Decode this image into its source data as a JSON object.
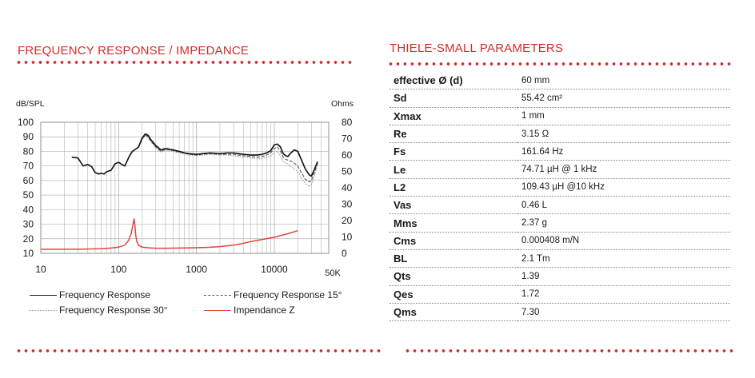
{
  "left_panel": {
    "title": "FREQUENCY RESPONSE / IMPEDANCE"
  },
  "right_panel": {
    "title": "THIELE-SMALL PARAMETERS",
    "parameters": [
      {
        "name": "effective Ø (d)",
        "value": "60 mm"
      },
      {
        "name": "Sd",
        "value": "55.42 cm²"
      },
      {
        "name": "Xmax",
        "value": "1 mm"
      },
      {
        "name": "Re",
        "value": "3.15 Ω"
      },
      {
        "name": "Fs",
        "value": "161.64 Hz"
      },
      {
        "name": "Le",
        "value": "74.71 µH @ 1 kHz"
      },
      {
        "name": "L2",
        "value": "109.43 µH @10 kHz"
      },
      {
        "name": "Vas",
        "value": "0.46 L"
      },
      {
        "name": "Mms",
        "value": "2.37 g"
      },
      {
        "name": "Cms",
        "value": "0.000408 m/N"
      },
      {
        "name": "BL",
        "value": "2.1 Tm"
      },
      {
        "name": "Qts",
        "value": "1.39"
      },
      {
        "name": "Qes",
        "value": "1.72"
      },
      {
        "name": "Qms",
        "value": "7.30"
      }
    ]
  },
  "colors": {
    "accent": "#d42a2a",
    "frequency_response": "#1a1a1a",
    "frequency_response_15": "#555555",
    "frequency_response_30": "#9a9a9a",
    "impedance": "#e8413c",
    "grid": "#b5b5b5"
  },
  "chart_data": {
    "type": "line",
    "x_scale": "log",
    "xlim": [
      10,
      50000
    ],
    "x_ticks": [
      {
        "value": 10,
        "label": "10"
      },
      {
        "value": 100,
        "label": "100"
      },
      {
        "value": 1000,
        "label": "1000"
      },
      {
        "value": 10000,
        "label": "10000"
      },
      {
        "value": 50000,
        "label": "50K"
      }
    ],
    "left_axis": {
      "label": "dB/SPL",
      "lim": [
        10,
        100
      ],
      "ticks": [
        10,
        20,
        30,
        40,
        50,
        60,
        70,
        80,
        90,
        100
      ]
    },
    "right_axis": {
      "label": "Ohms",
      "lim": [
        0,
        80
      ],
      "ticks": [
        0,
        10,
        20,
        30,
        40,
        50,
        60,
        70,
        80
      ]
    },
    "grid": true,
    "legend": [
      "Frequency Response",
      "Frequency Response 15°",
      "Frequency Response 30°",
      "Impendance Z"
    ],
    "series": [
      {
        "name": "Frequency Response",
        "axis": "left",
        "style": "solid",
        "x": [
          25,
          30,
          35,
          40,
          45,
          50,
          55,
          60,
          65,
          70,
          80,
          90,
          100,
          110,
          120,
          130,
          140,
          150,
          160,
          170,
          180,
          200,
          220,
          240,
          260,
          280,
          300,
          350,
          400,
          450,
          500,
          600,
          700,
          800,
          1000,
          1200,
          1500,
          2000,
          2500,
          3000,
          4000,
          5000,
          6000,
          7000,
          8000,
          9000,
          10000,
          11000,
          12000,
          13000,
          14000,
          15000,
          16000,
          18000,
          20000,
          22000,
          25000,
          28000,
          30000,
          33000,
          36000
        ],
        "y": [
          76,
          75.5,
          70,
          71,
          69.5,
          65.5,
          64.5,
          65,
          64.5,
          66,
          67,
          71.5,
          72.5,
          71,
          70,
          74,
          77.5,
          80,
          81,
          82,
          83,
          89,
          92,
          91,
          88,
          86,
          84,
          81,
          82,
          81.5,
          81,
          80,
          79,
          78.5,
          78,
          78.5,
          79,
          78.5,
          79,
          79,
          78,
          77.5,
          77.5,
          78,
          79,
          80.5,
          84.5,
          85,
          83,
          78.5,
          77,
          76.5,
          78.5,
          81,
          80,
          75,
          68,
          64,
          63,
          68,
          73
        ]
      },
      {
        "name": "Frequency Response 15°",
        "axis": "left",
        "style": "dashed",
        "x": [
          180,
          200,
          220,
          240,
          260,
          280,
          300,
          350,
          400,
          450,
          500,
          600,
          700,
          800,
          1000,
          1200,
          1500,
          2000,
          2500,
          3000,
          4000,
          5000,
          6000,
          7000,
          8000,
          9000,
          10000,
          11000,
          12000,
          13000,
          14000,
          15000,
          16000,
          18000,
          20000,
          22000,
          25000,
          28000,
          30000,
          33000,
          36000
        ],
        "y": [
          83,
          88.5,
          91.5,
          90,
          87,
          85,
          83,
          80,
          81.5,
          81,
          80.5,
          79.5,
          79,
          78,
          77.5,
          78,
          78.5,
          78,
          78,
          78,
          77,
          76.5,
          76,
          76.5,
          77.5,
          79,
          82,
          83,
          80,
          76,
          74.5,
          74,
          73.5,
          72,
          70,
          66,
          61,
          59,
          60,
          66,
          72
        ]
      },
      {
        "name": "Frequency Response 30°",
        "axis": "left",
        "style": "dotted",
        "x": [
          180,
          200,
          220,
          240,
          260,
          280,
          300,
          350,
          400,
          450,
          500,
          600,
          700,
          800,
          1000,
          1200,
          1500,
          2000,
          2500,
          3000,
          4000,
          5000,
          6000,
          7000,
          8000,
          9000,
          10000,
          11000,
          12000,
          13000,
          14000,
          15000,
          16000,
          18000,
          20000,
          22000,
          25000,
          28000,
          30000,
          33000,
          36000
        ],
        "y": [
          82.5,
          88,
          91,
          89.5,
          86.5,
          84.5,
          82.5,
          79.5,
          81,
          80.5,
          80,
          79,
          78.5,
          77.5,
          77,
          77.5,
          78,
          77.5,
          77.5,
          77,
          76,
          75.5,
          75,
          75,
          76,
          77,
          79,
          80,
          77,
          73,
          72,
          71.5,
          70,
          68,
          66,
          62,
          58,
          56,
          57,
          64,
          71
        ]
      },
      {
        "name": "Impendance Z",
        "axis": "right",
        "style": "solid",
        "x": [
          10,
          30,
          60,
          80,
          100,
          120,
          135,
          145,
          152,
          158,
          162,
          166,
          172,
          180,
          200,
          250,
          300,
          400,
          600,
          1000,
          1500,
          2000,
          3000,
          4000,
          5000,
          7000,
          10000,
          15000,
          20000
        ],
        "y": [
          2.5,
          2.5,
          2.8,
          3.2,
          3.8,
          5,
          8,
          12,
          17,
          21,
          17,
          11,
          7,
          5,
          3.8,
          3.3,
          3.1,
          3.1,
          3.2,
          3.4,
          3.7,
          4.1,
          5,
          6.1,
          7.2,
          8.5,
          9.8,
          12,
          13.8
        ]
      }
    ]
  }
}
